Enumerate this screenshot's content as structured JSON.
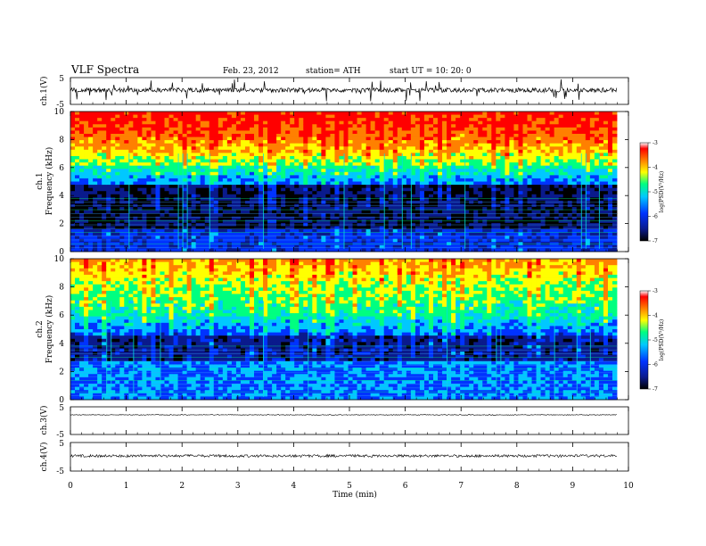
{
  "header": {
    "title": "VLF  Spectra",
    "date": "Feb. 23, 2012",
    "station": "station= ATH",
    "start": "start  UT  =    10: 20: 0"
  },
  "chart_data": [
    {
      "type": "line",
      "name": "ch1-waveform",
      "ylabel": "ch.1(V)",
      "ylim": [
        -5,
        5
      ],
      "yticks": [
        "5",
        "-5"
      ],
      "xlim": [
        0,
        10
      ]
    },
    {
      "type": "heatmap",
      "name": "ch1-spectrogram",
      "ylabel_line1": "ch.1",
      "ylabel_line2": "Frequency  (kHz)",
      "ylim": [
        0,
        10
      ],
      "yticks": [
        "10",
        "8",
        "6",
        "4",
        "2",
        "0"
      ],
      "xlim": [
        0,
        10
      ],
      "colorbar": {
        "label": "log(PSD(V²/Hz)",
        "range": [
          -7,
          -3
        ],
        "ticks": [
          "-3",
          "-4",
          "-5",
          "-6",
          "-7"
        ]
      }
    },
    {
      "type": "heatmap",
      "name": "ch2-spectrogram",
      "ylabel_line1": "ch.2",
      "ylabel_line2": "Frequency  (kHz)",
      "ylim": [
        0,
        10
      ],
      "yticks": [
        "10",
        "8",
        "6",
        "4",
        "2",
        "0"
      ],
      "xlim": [
        0,
        10
      ],
      "colorbar": {
        "label": "log(PSD(V²/Hz)",
        "range": [
          -7,
          -3
        ],
        "ticks": [
          "-3",
          "-4",
          "-5",
          "-6",
          "-7"
        ]
      }
    },
    {
      "type": "line",
      "name": "ch3-waveform",
      "ylabel": "ch.3(V)",
      "ylim": [
        -5,
        5
      ],
      "yticks": [
        "5",
        "-5"
      ],
      "xlim": [
        0,
        10
      ]
    },
    {
      "type": "line",
      "name": "ch4-waveform",
      "ylabel": "ch.4(V)",
      "ylim": [
        -5,
        5
      ],
      "yticks": [
        "5",
        "-5"
      ],
      "xlim": [
        0,
        10
      ]
    }
  ],
  "xaxis": {
    "label": "Time  (min)",
    "ticks": [
      "0",
      "1",
      "2",
      "3",
      "4",
      "5",
      "6",
      "7",
      "8",
      "9",
      "10"
    ]
  },
  "colors": {
    "scale": [
      "#000000",
      "#0a1a8c",
      "#0033ff",
      "#00c8ff",
      "#00ff80",
      "#ffff00",
      "#ff8000",
      "#ff0000",
      "#ffffff"
    ]
  }
}
